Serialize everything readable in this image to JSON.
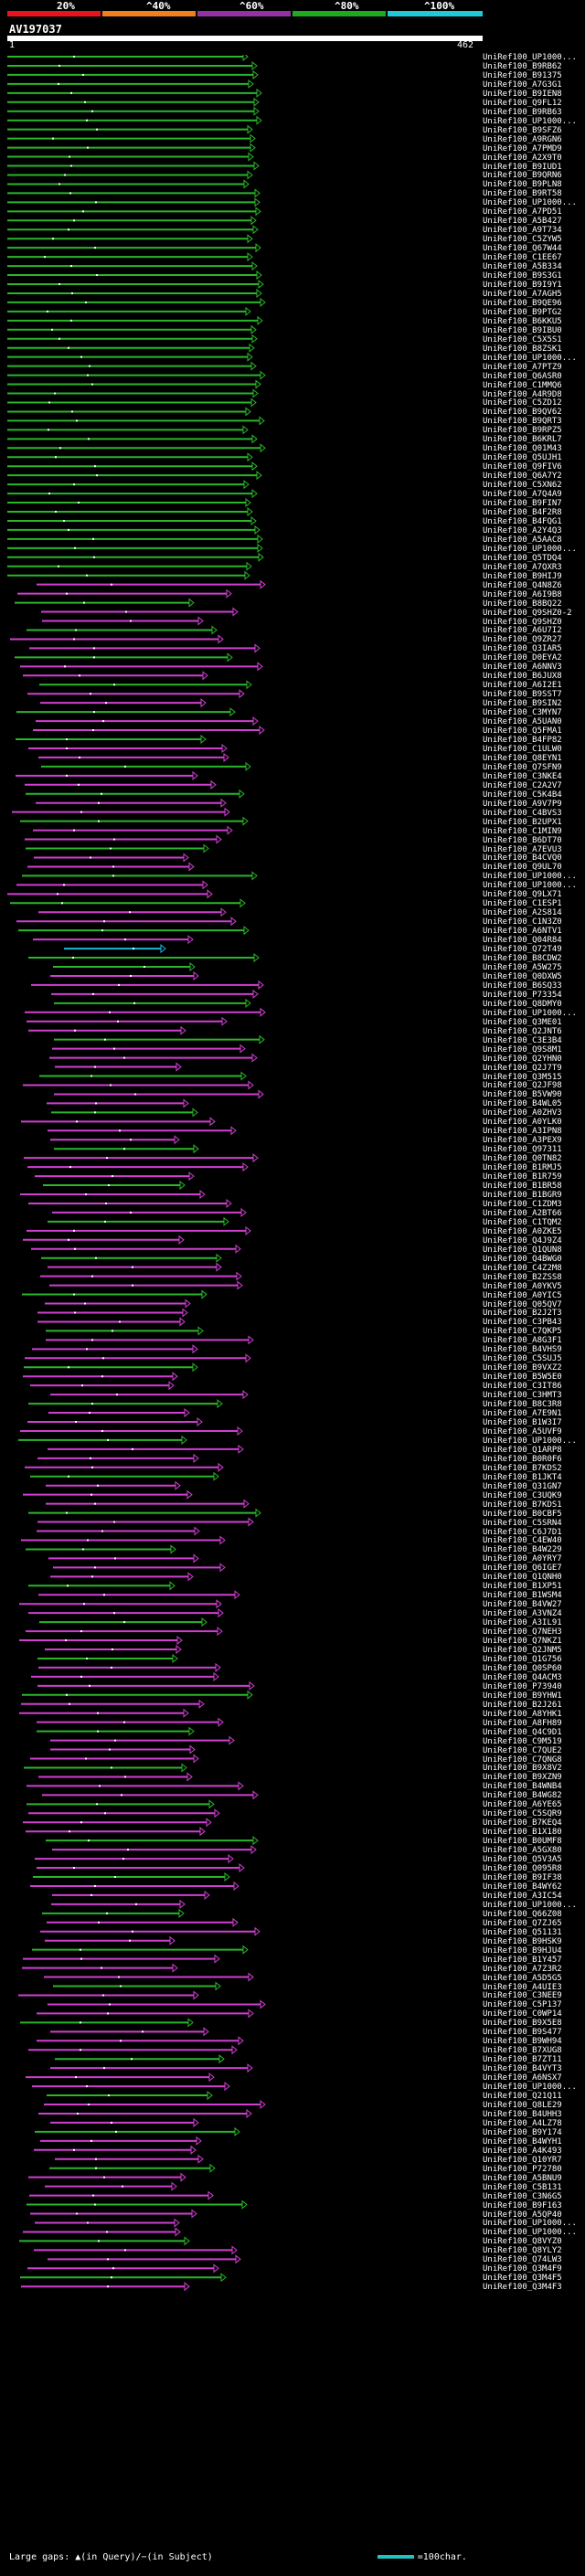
{
  "scale": {
    "labels": [
      "20%",
      "^40%",
      "^60%",
      "^80%",
      "^100%"
    ],
    "colors": [
      "#e8131e",
      "#f07f1e",
      "#9531a4",
      "#1fa91f",
      "#1fc9d8"
    ]
  },
  "query": {
    "id": "AV197037",
    "start": "1",
    "end": "462"
  },
  "hit_colors": {
    "magenta": "#d03fd0",
    "green": "#2ab52a",
    "cyan": "#1fb6d8"
  },
  "hits": [
    "UniRef100_UP1000...",
    "UniRef100_B9RB62",
    "UniRef100_B91375",
    "UniRef100_A7G3G1",
    "UniRef100_B9IEN8",
    "UniRef100_Q9FL12",
    "UniRef100_B9RB63",
    "UniRef100_UP1000...",
    "UniRef100_B9SFZ6",
    "UniRef100_A9RGN6",
    "UniRef100_A7PMD9",
    "UniRef100_A2X9T0",
    "UniRef100_B9IUD1",
    "UniRef100_B9QRN6",
    "UniRef100_B9PLN8",
    "UniRef100_B9RT58",
    "UniRef100_UP1000...",
    "UniRef100_A7PD51",
    "UniRef100_A5B427",
    "UniRef100_A9T734",
    "UniRef100_C5ZYW5",
    "UniRef100_Q67W44",
    "UniRef100_C1EE67",
    "UniRef100_A5B334",
    "UniRef100_B9S3G1",
    "UniRef100_B9I9Y1",
    "UniRef100_A7AGH5",
    "UniRef100_B9QE96",
    "UniRef100_B9PTG2",
    "UniRef100_B6KKU5",
    "UniRef100_B9IBU0",
    "UniRef100_C5X5S1",
    "UniRef100_B8ZSK1",
    "UniRef100_UP1000...",
    "UniRef100_A7PTZ9",
    "UniRef100_Q6ASR0",
    "UniRef100_C1MMQ6",
    "UniRef100_A4R9D8",
    "UniRef100_C5ZD12",
    "UniRef100_B9QV62",
    "UniRef100_B9QRT3",
    "UniRef100_B9RPZ5",
    "UniRef100_B6KRL7",
    "UniRef100_Q01M43",
    "UniRef100_Q5UJH1",
    "UniRef100_Q9FIV6",
    "UniRef100_Q6A7Y2",
    "UniRef100_C5XN62",
    "UniRef100_A7Q4A9",
    "UniRef100_B9FIN7",
    "UniRef100_B4F2R8",
    "UniRef100_B4FQG1",
    "UniRef100_A2Y4Q3",
    "UniRef100_A5AAC8",
    "UniRef100_UP1000...",
    "UniRef100_Q5TDQ4",
    "UniRef100_A7QXR3",
    "UniRef100_B9HIJ9",
    "UniRef100_Q4N8Z6",
    "UniRef100_A6I9B8",
    "UniRef100_B8BQ22",
    "UniRef100_Q9SHZ0-2",
    "UniRef100_Q9SHZ0",
    "UniRef100_A6U7I2",
    "UniRef100_Q9ZR27",
    "UniRef100_Q3IAR5",
    "UniRef100_D0EYA2",
    "UniRef100_A6NNV3",
    "UniRef100_B6JUX8",
    "UniRef100_A6I2E1",
    "UniRef100_B9SST7",
    "UniRef100_B9SIN2",
    "UniRef100_C3MYN7",
    "UniRef100_A5UAN0",
    "UniRef100_Q5FMA1",
    "UniRef100_B4FP82",
    "UniRef100_C1ULW0",
    "UniRef100_Q8EYN1",
    "UniRef100_Q7SFN9",
    "UniRef100_C3NKE4",
    "UniRef100_C2A2V7",
    "UniRef100_C5K4B4",
    "UniRef100_A9V7P9",
    "UniRef100_C4BVS3",
    "UniRef100_B2UPX1",
    "UniRef100_C1MIN9",
    "UniRef100_B6DT70",
    "UniRef100_A7EVU3",
    "UniRef100_B4CVQ0",
    "UniRef100_Q9UL70",
    "UniRef100_UP1000...",
    "UniRef100_UP1000...",
    "UniRef100_Q9LX71",
    "UniRef100_C1ESP1",
    "UniRef100_A2S814",
    "UniRef100_C1N3Z0",
    "UniRef100_A6NTV1",
    "UniRef100_Q04R84",
    "UniRef100_Q72T49",
    "UniRef100_B8CDW2",
    "UniRef100_A5W275",
    "UniRef100_Q0DXW5",
    "UniRef100_B6SQ33",
    "UniRef100_P73354",
    "UniRef100_Q8DMY0",
    "UniRef100_UP1000...",
    "UniRef100_Q3ME01",
    "UniRef100_Q2JNT6",
    "UniRef100_C3E3B4",
    "UniRef100_Q9S8M1",
    "UniRef100_Q2YHN0",
    "UniRef100_Q2J7T9",
    "UniRef100_Q3M515",
    "UniRef100_Q2JF98",
    "UniRef100_B5VW90",
    "UniRef100_B4WL05",
    "UniRef100_A0ZHV3",
    "UniRef100_A0YLK0",
    "UniRef100_A3IPN8",
    "UniRef100_A3PEX9",
    "UniRef100_Q97311",
    "UniRef100_Q0TN82",
    "UniRef100_B1RMJ5",
    "UniRef100_B1R759",
    "UniRef100_B1BR58",
    "UniRef100_B1BGR9",
    "UniRef100_C1ZDM3",
    "UniRef100_A2BT66",
    "UniRef100_C1TQM2",
    "UniRef100_A0ZKE5",
    "UniRef100_Q4J9Z4",
    "UniRef100_Q1QUN8",
    "UniRef100_Q4BWG0",
    "UniRef100_C4Z2M8",
    "UniRef100_B2ZSS8",
    "UniRef100_A0YKV5",
    "UniRef100_A0YIC5",
    "UniRef100_Q05QV7",
    "UniRef100_B2J2T3",
    "UniRef100_C3PB43",
    "UniRef100_C7QKP5",
    "UniRef100_A8G3F1",
    "UniRef100_B4VHS9",
    "UniRef100_C5SUJ5",
    "UniRef100_B9VXZ2",
    "UniRef100_B5W5E0",
    "UniRef100_C3IT86",
    "UniRef100_C3HMT3",
    "UniRef100_B8C3R8",
    "UniRef100_A7E9N1",
    "UniRef100_B1W3I7",
    "UniRef100_A5UVF9",
    "UniRef100_UP1000...",
    "UniRef100_Q1ARP8",
    "UniRef100_B0R0F6",
    "UniRef100_B7KDS2",
    "UniRef100_B1JKT4",
    "UniRef100_Q31GN7",
    "UniRef100_C3UQK9",
    "UniRef100_B7KDS1",
    "UniRef100_B0CBF5",
    "UniRef100_C5SRN4",
    "UniRef100_C6J7D1",
    "UniRef100_C4EW40",
    "UniRef100_B4W229",
    "UniRef100_A0YRY7",
    "UniRef100_Q6IGE7",
    "UniRef100_Q1QNH0",
    "UniRef100_B1XP51",
    "UniRef100_B1WSM4",
    "UniRef100_B4VW27",
    "UniRef100_A3VNZ4",
    "UniRef100_A3IL91",
    "UniRef100_Q7NEH3",
    "UniRef100_Q7NKZ1",
    "UniRef100_Q2JNM5",
    "UniRef100_Q1G756",
    "UniRef100_Q0SP60",
    "UniRef100_Q4ACM3",
    "UniRef100_P73940",
    "UniRef100_B9YHW1",
    "UniRef100_B2J261",
    "UniRef100_A8YHK1",
    "UniRef100_A8FH89",
    "UniRef100_Q4C9D1",
    "UniRef100_C9M519",
    "UniRef100_C7QUE2",
    "UniRef100_C7QNG8",
    "UniRef100_B9X8V2",
    "UniRef100_B9XZN9",
    "UniRef100_B4WNB4",
    "UniRef100_B4WG82",
    "UniRef100_A6YE65",
    "UniRef100_C5SQR9",
    "UniRef100_B7KEQ4",
    "UniRef100_B1X180",
    "UniRef100_B0UMF8",
    "UniRef100_A5GX80",
    "UniRef100_Q5V3A5",
    "UniRef100_Q095R8",
    "UniRef100_B9IF38",
    "UniRef100_B4WY62",
    "UniRef100_A3IC54",
    "UniRef100_UP1000...",
    "UniRef100_Q66Z08",
    "UniRef100_Q7ZJ65",
    "UniRef100_Q51131",
    "UniRef100_B9HSK9",
    "UniRef100_B9HJU4",
    "UniRef100_B1Y457",
    "UniRef100_A7Z3R2",
    "UniRef100_A5D5G5",
    "UniRef100_A4UIE3",
    "UniRef100_C3NEE9",
    "UniRef100_C5P137",
    "UniRef100_C0WP14",
    "UniRef100_B9X5E8",
    "UniRef100_B9S477",
    "UniRef100_B9WH94",
    "UniRef100_B7XUG8",
    "UniRef100_B7ZT11",
    "UniRef100_B4VYT3",
    "UniRef100_A6NSX7",
    "UniRef100_UP1000...",
    "UniRef100_Q21Q11",
    "UniRef100_Q8LE29",
    "UniRef100_B4UHH3",
    "UniRef100_A4LZ78",
    "UniRef100_B9Y174",
    "UniRef100_B4WYH1",
    "UniRef100_A4K493",
    "UniRef100_Q10YR7",
    "UniRef100_P72780",
    "UniRef100_A5BNU9",
    "UniRef100_C5B131",
    "UniRef100_C3N6G5",
    "UniRef100_B9F163",
    "UniRef100_A5QP40",
    "UniRef100_UP1000...",
    "UniRef100_UP1000...",
    "UniRef100_Q8VYZ0",
    "UniRef100_Q8YLY2",
    "UniRef100_Q74LW3",
    "UniRef100_Q3M4F9",
    "UniRef100_Q3M4F5",
    "UniRef100_Q3M4F3"
  ],
  "footer": {
    "large_gaps": "Large gaps: ▲(in Query)/−(in Subject)",
    "scale_legend": "=100char."
  }
}
